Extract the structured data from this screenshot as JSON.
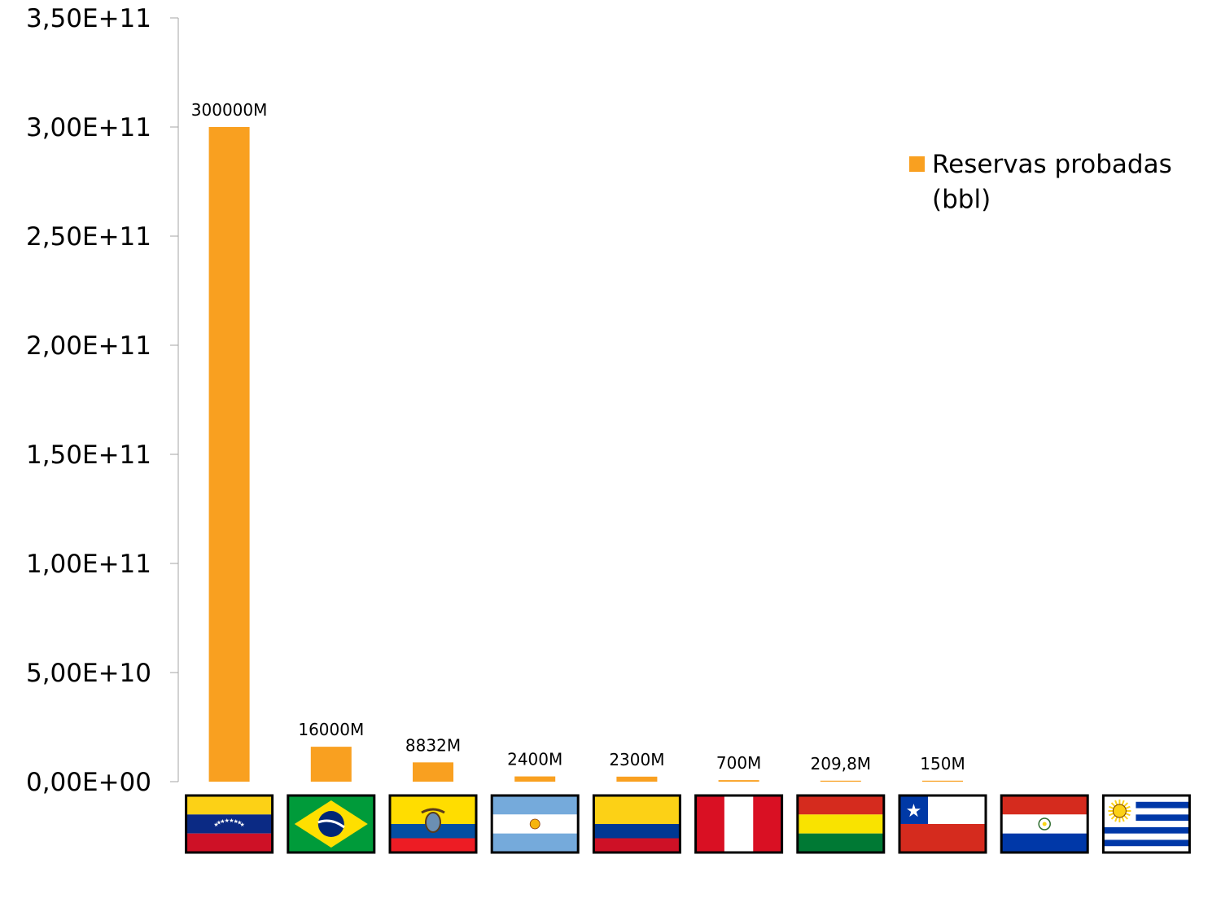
{
  "chart_data": {
    "type": "bar",
    "categories": [
      "Venezuela",
      "Brasil",
      "Ecuador",
      "Argentina",
      "Colombia",
      "Perú",
      "Bolivia",
      "Chile",
      "Paraguay",
      "Uruguay"
    ],
    "series": [
      {
        "name": "Reservas probadas (bbl)",
        "color": "#F9A020",
        "values": [
          300000000000,
          16000000000,
          8832000000,
          2400000000,
          2300000000,
          700000000,
          209800000,
          150000000,
          0,
          0
        ],
        "data_labels": [
          "300000M",
          "16000M",
          "8832M",
          "2400M",
          "2300M",
          "700M",
          "209,8M",
          "150M",
          "",
          ""
        ]
      }
    ],
    "ylim": [
      0,
      350000000000
    ],
    "yticks": [
      0,
      50000000000,
      100000000000,
      150000000000,
      200000000000,
      250000000000,
      300000000000,
      350000000000
    ],
    "ytick_labels": [
      "0,00E+00",
      "5,00E+10",
      "1,00E+11",
      "1,50E+11",
      "2,00E+11",
      "2,50E+11",
      "3,00E+11",
      "3,50E+11"
    ],
    "xtick_icons": [
      "venezuela-flag-icon",
      "brazil-flag-icon",
      "ecuador-flag-icon",
      "argentina-flag-icon",
      "colombia-flag-icon",
      "peru-flag-icon",
      "bolivia-flag-icon",
      "chile-flag-icon",
      "paraguay-flag-icon",
      "uruguay-flag-icon"
    ],
    "legend": {
      "position": "top-right",
      "lines": [
        "Reservas probadas",
        "(bbl)"
      ]
    },
    "grid": false,
    "title": "",
    "xlabel": "",
    "ylabel": ""
  }
}
